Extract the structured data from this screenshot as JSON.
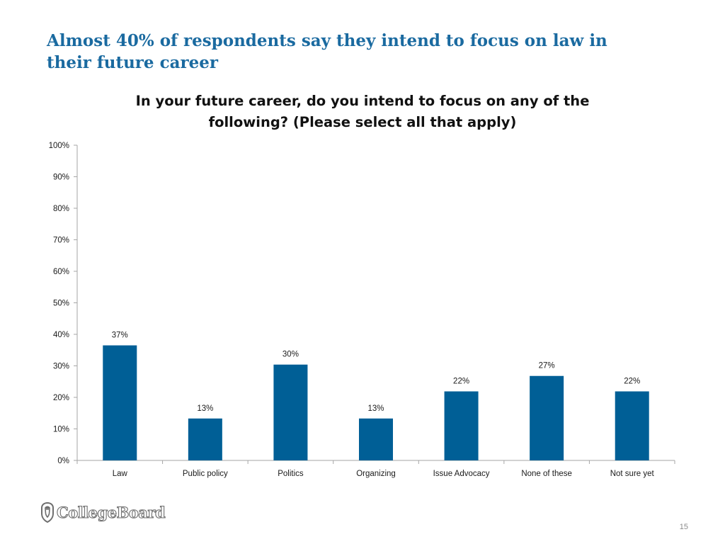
{
  "slide": {
    "title": "Almost 40% of respondents say they intend to focus on law in their future career",
    "page_number": "15",
    "logo_text": "CollegeBoard",
    "logo_icon": "acorn-shield-icon"
  },
  "colors": {
    "bar": "#005f96",
    "title": "#1a6aa0",
    "axis": "#a6a6a6"
  },
  "chart_data": {
    "type": "bar",
    "title": "In your future career, do you intend to focus on any of the following? (Please select all that apply)",
    "categories": [
      "Law",
      "Public policy",
      "Politics",
      "Organizing",
      "Issue Advocacy",
      "None of these",
      "Not sure yet"
    ],
    "values": [
      37,
      13,
      30,
      13,
      22,
      27,
      22
    ],
    "data_labels": [
      "37%",
      "13%",
      "30%",
      "13%",
      "22%",
      "27%",
      "22%"
    ],
    "values_precise": [
      36.5,
      13.3,
      30.4,
      13.3,
      21.9,
      26.8,
      21.9
    ],
    "ylim": [
      0,
      100
    ],
    "yticks": [
      0,
      10,
      20,
      30,
      40,
      50,
      60,
      70,
      80,
      90,
      100
    ],
    "ytick_labels": [
      "0%",
      "10%",
      "20%",
      "30%",
      "40%",
      "50%",
      "60%",
      "70%",
      "80%",
      "90%",
      "100%"
    ],
    "xlabel": "",
    "ylabel": "",
    "grid": false,
    "legend": "none"
  }
}
